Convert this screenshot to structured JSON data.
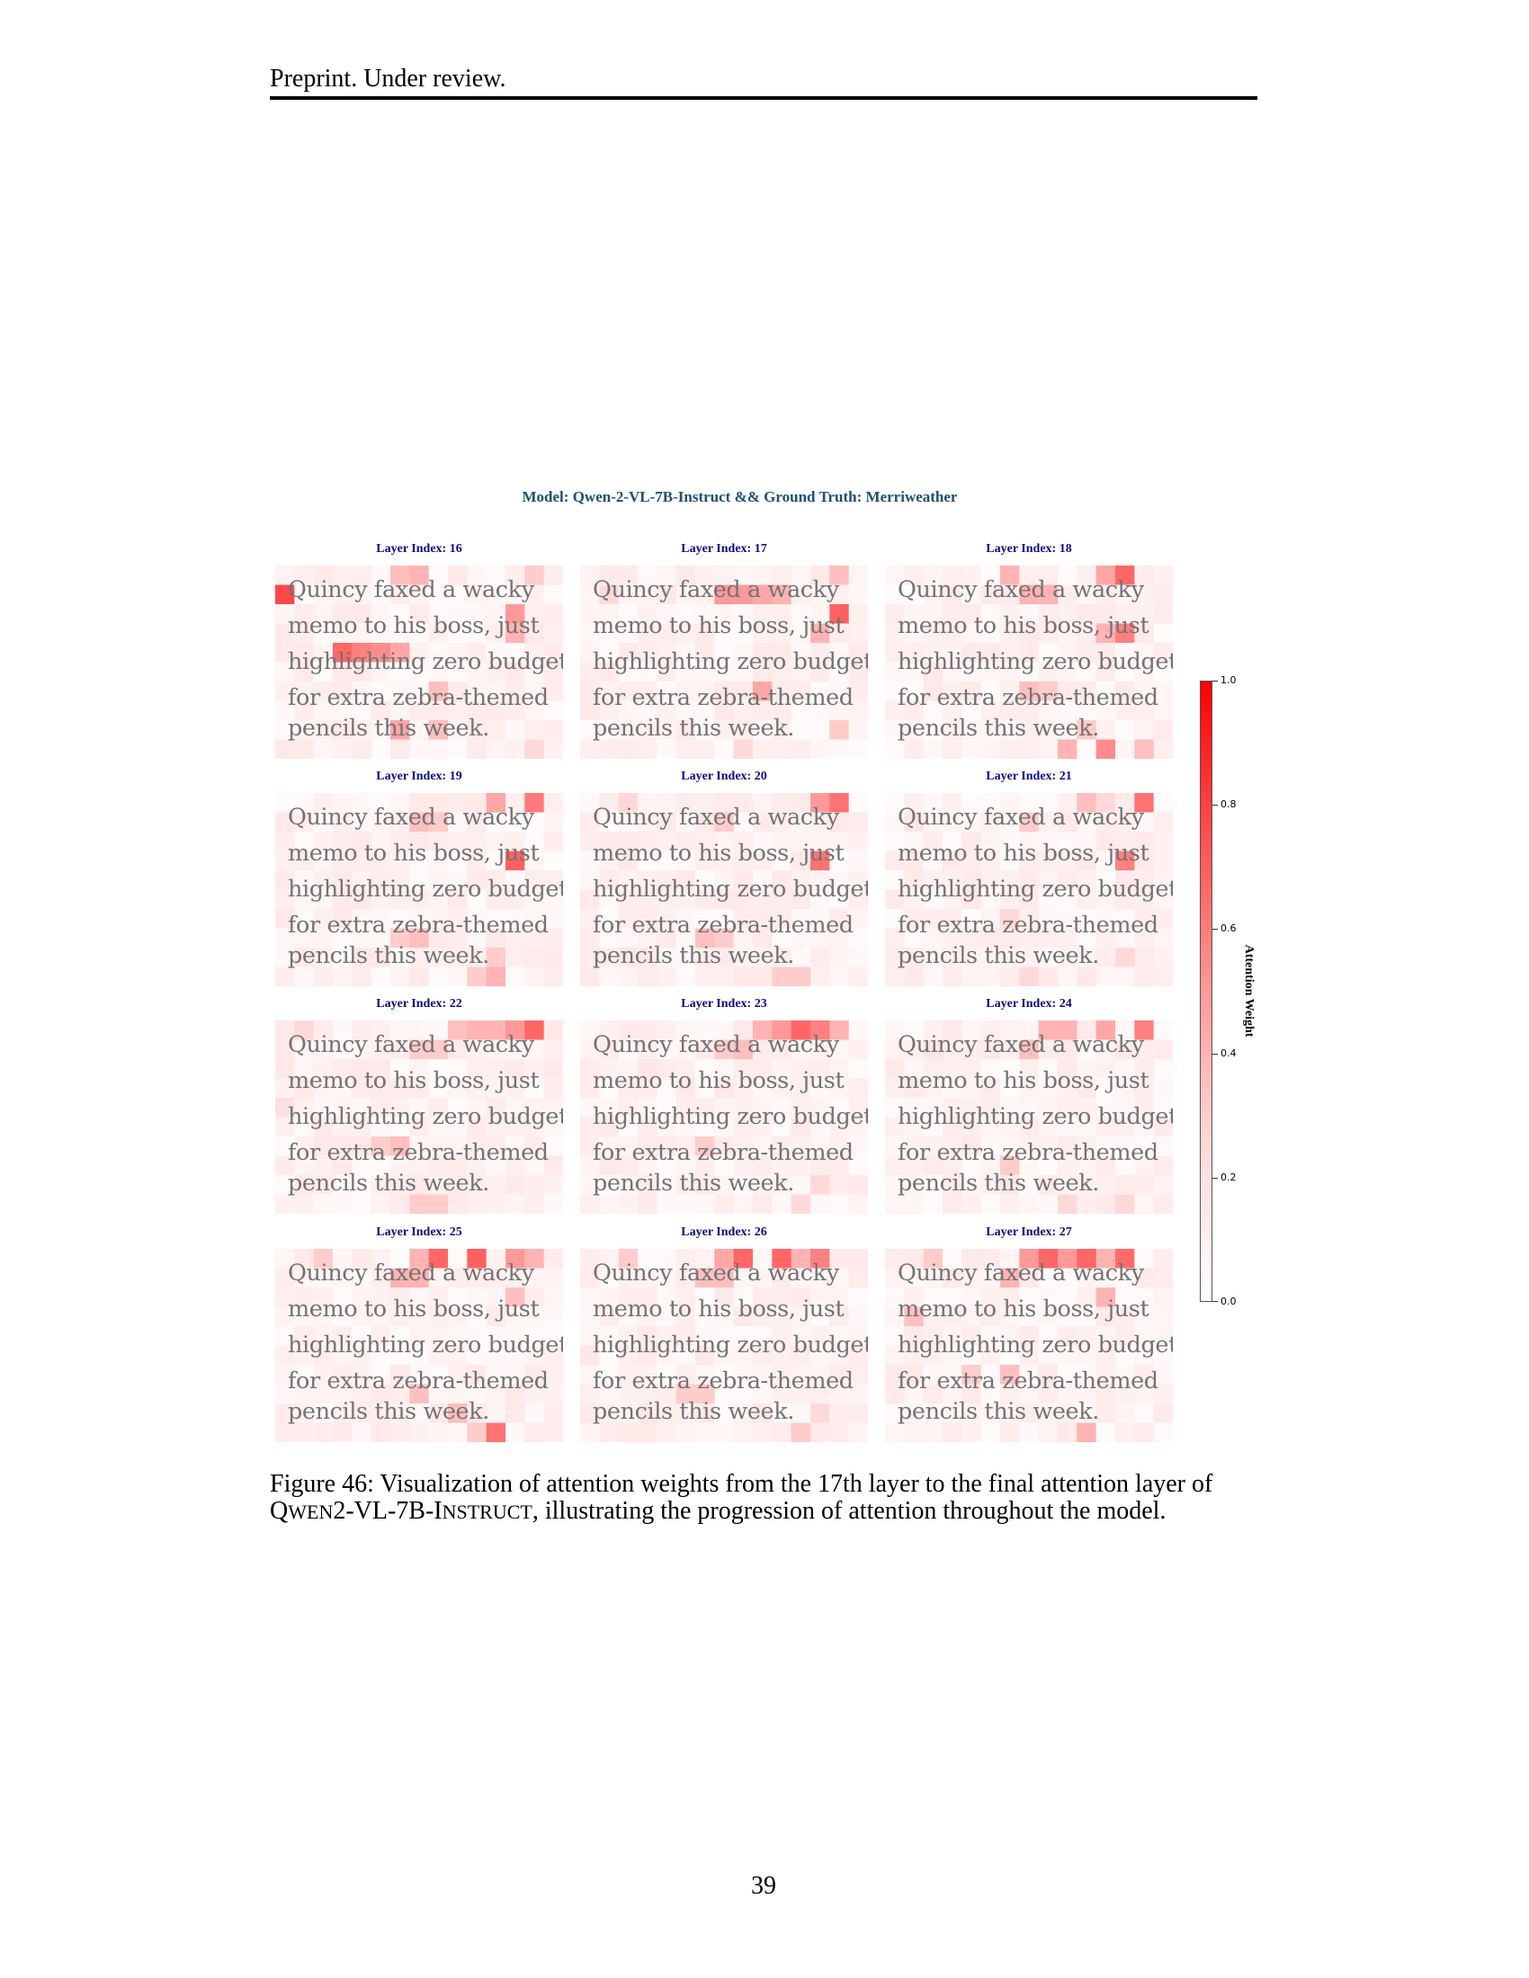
{
  "header": {
    "text": "Preprint. Under review."
  },
  "figure": {
    "title": "Model: Qwen-2-VL-7B-Instruct && Ground Truth: Merriweather",
    "text_lines": [
      "Quincy faxed a wacky",
      "memo to his boss, just",
      "highlighting zero budget",
      "for extra zebra-themed",
      "pencils this week."
    ],
    "panels": [
      {
        "title": "Layer Index: 16",
        "hot": [
          [
            0,
            1,
            0.72
          ],
          [
            3,
            4,
            0.6
          ],
          [
            4,
            4,
            0.5
          ],
          [
            5,
            4,
            0.45
          ],
          [
            6,
            4,
            0.35
          ],
          [
            6,
            0,
            0.25
          ],
          [
            7,
            0,
            0.3
          ],
          [
            12,
            2,
            0.4
          ],
          [
            12,
            3,
            0.3
          ],
          [
            6,
            8,
            0.35
          ],
          [
            8,
            8,
            0.25
          ],
          [
            13,
            0,
            0.2
          ],
          [
            8,
            6,
            0.25
          ],
          [
            13,
            9,
            0.15
          ]
        ]
      },
      {
        "title": "Layer Index: 17",
        "hot": [
          [
            13,
            2,
            0.62
          ],
          [
            7,
            1,
            0.4
          ],
          [
            8,
            1,
            0.4
          ],
          [
            9,
            1,
            0.35
          ],
          [
            10,
            1,
            0.3
          ],
          [
            13,
            0,
            0.25
          ],
          [
            9,
            6,
            0.35
          ],
          [
            13,
            8,
            0.2
          ],
          [
            8,
            9,
            0.15
          ],
          [
            1,
            1,
            0.15
          ],
          [
            12,
            3,
            0.3
          ]
        ]
      },
      {
        "title": "Layer Index: 18",
        "hot": [
          [
            12,
            0,
            0.6
          ],
          [
            11,
            0,
            0.35
          ],
          [
            6,
            0,
            0.3
          ],
          [
            7,
            1,
            0.3
          ],
          [
            8,
            1,
            0.3
          ],
          [
            11,
            3,
            0.3
          ],
          [
            12,
            3,
            0.5
          ],
          [
            11,
            9,
            0.45
          ],
          [
            9,
            9,
            0.3
          ],
          [
            13,
            9,
            0.25
          ],
          [
            7,
            6,
            0.25
          ],
          [
            8,
            6,
            0.2
          ],
          [
            10,
            8,
            0.2
          ]
        ]
      },
      {
        "title": "Layer Index: 19",
        "hot": [
          [
            13,
            0,
            0.52
          ],
          [
            11,
            0,
            0.35
          ],
          [
            12,
            3,
            0.62
          ],
          [
            7,
            1,
            0.25
          ],
          [
            8,
            1,
            0.2
          ],
          [
            6,
            7,
            0.2
          ],
          [
            7,
            7,
            0.25
          ],
          [
            11,
            8,
            0.2
          ],
          [
            11,
            9,
            0.3
          ],
          [
            10,
            9,
            0.2
          ]
        ]
      },
      {
        "title": "Layer Index: 20",
        "hot": [
          [
            13,
            0,
            0.55
          ],
          [
            12,
            0,
            0.4
          ],
          [
            12,
            3,
            0.55
          ],
          [
            7,
            1,
            0.2
          ],
          [
            6,
            7,
            0.25
          ],
          [
            7,
            7,
            0.2
          ],
          [
            10,
            9,
            0.2
          ],
          [
            11,
            9,
            0.2
          ],
          [
            2,
            0,
            0.15
          ]
        ]
      },
      {
        "title": "Layer Index: 21",
        "hot": [
          [
            13,
            0,
            0.55
          ],
          [
            12,
            3,
            0.5
          ],
          [
            7,
            1,
            0.2
          ],
          [
            10,
            0,
            0.25
          ],
          [
            11,
            0,
            0.15
          ],
          [
            6,
            6,
            0.15
          ],
          [
            12,
            8,
            0.15
          ],
          [
            7,
            9,
            0.15
          ],
          [
            1,
            1,
            0.1
          ]
        ]
      },
      {
        "title": "Layer Index: 22",
        "hot": [
          [
            13,
            0,
            0.6
          ],
          [
            12,
            0,
            0.4
          ],
          [
            11,
            0,
            0.3
          ],
          [
            9,
            0,
            0.25
          ],
          [
            10,
            0,
            0.3
          ],
          [
            7,
            1,
            0.2
          ],
          [
            8,
            1,
            0.2
          ],
          [
            5,
            6,
            0.2
          ],
          [
            6,
            6,
            0.25
          ],
          [
            7,
            9,
            0.2
          ],
          [
            8,
            9,
            0.2
          ],
          [
            1,
            0,
            0.15
          ],
          [
            0,
            4,
            0.12
          ]
        ]
      },
      {
        "title": "Layer Index: 23",
        "hot": [
          [
            11,
            0,
            0.6
          ],
          [
            12,
            0,
            0.5
          ],
          [
            10,
            0,
            0.4
          ],
          [
            13,
            0,
            0.3
          ],
          [
            9,
            0,
            0.3
          ],
          [
            7,
            1,
            0.2
          ],
          [
            8,
            1,
            0.25
          ],
          [
            6,
            6,
            0.2
          ],
          [
            12,
            8,
            0.15
          ],
          [
            11,
            9,
            0.15
          ],
          [
            3,
            2,
            0.1
          ]
        ]
      },
      {
        "title": "Layer Index: 24",
        "hot": [
          [
            13,
            0,
            0.5
          ],
          [
            11,
            0,
            0.35
          ],
          [
            8,
            0,
            0.3
          ],
          [
            7,
            1,
            0.25
          ],
          [
            9,
            0,
            0.3
          ],
          [
            6,
            7,
            0.2
          ],
          [
            9,
            9,
            0.15
          ],
          [
            12,
            9,
            0.15
          ],
          [
            2,
            1,
            0.1
          ]
        ]
      },
      {
        "title": "Layer Index: 25",
        "hot": [
          [
            8,
            0,
            0.6
          ],
          [
            10,
            0,
            0.62
          ],
          [
            12,
            0,
            0.4
          ],
          [
            7,
            0,
            0.3
          ],
          [
            13,
            0,
            0.3
          ],
          [
            6,
            1,
            0.3
          ],
          [
            7,
            1,
            0.3
          ],
          [
            12,
            2,
            0.25
          ],
          [
            11,
            9,
            0.55
          ],
          [
            7,
            7,
            0.25
          ],
          [
            9,
            8,
            0.25
          ],
          [
            10,
            9,
            0.2
          ],
          [
            2,
            0,
            0.2
          ]
        ]
      },
      {
        "title": "Layer Index: 26",
        "hot": [
          [
            8,
            0,
            0.6
          ],
          [
            10,
            0,
            0.6
          ],
          [
            12,
            0,
            0.5
          ],
          [
            7,
            0,
            0.35
          ],
          [
            11,
            0,
            0.3
          ],
          [
            6,
            1,
            0.25
          ],
          [
            7,
            1,
            0.25
          ],
          [
            5,
            7,
            0.2
          ],
          [
            6,
            7,
            0.2
          ],
          [
            11,
            9,
            0.2
          ],
          [
            12,
            8,
            0.15
          ],
          [
            2,
            0,
            0.2
          ]
        ]
      },
      {
        "title": "Layer Index: 27",
        "hot": [
          [
            8,
            0,
            0.6
          ],
          [
            10,
            0,
            0.6
          ],
          [
            12,
            0,
            0.58
          ],
          [
            7,
            0,
            0.4
          ],
          [
            9,
            0,
            0.4
          ],
          [
            11,
            0,
            0.3
          ],
          [
            6,
            1,
            0.3
          ],
          [
            11,
            2,
            0.3
          ],
          [
            1,
            3,
            0.25
          ],
          [
            4,
            6,
            0.2
          ],
          [
            6,
            6,
            0.25
          ],
          [
            10,
            9,
            0.3
          ],
          [
            2,
            0,
            0.2
          ]
        ]
      }
    ]
  },
  "colorbar": {
    "label": "Attention Weight",
    "ticks": [
      "0.0",
      "0.2",
      "0.4",
      "0.6",
      "0.8",
      "1.0"
    ]
  },
  "caption": {
    "prefix": "Figure 46: Visualization of attention weights from the 17th layer to the final attention layer of ",
    "model_q": "Q",
    "model_wen": "WEN",
    "model_mid": "2-VL-7B-I",
    "model_nstruct": "NSTRUCT",
    "suffix": ", illustrating the progression of attention throughout the model."
  },
  "page_number": "39"
}
